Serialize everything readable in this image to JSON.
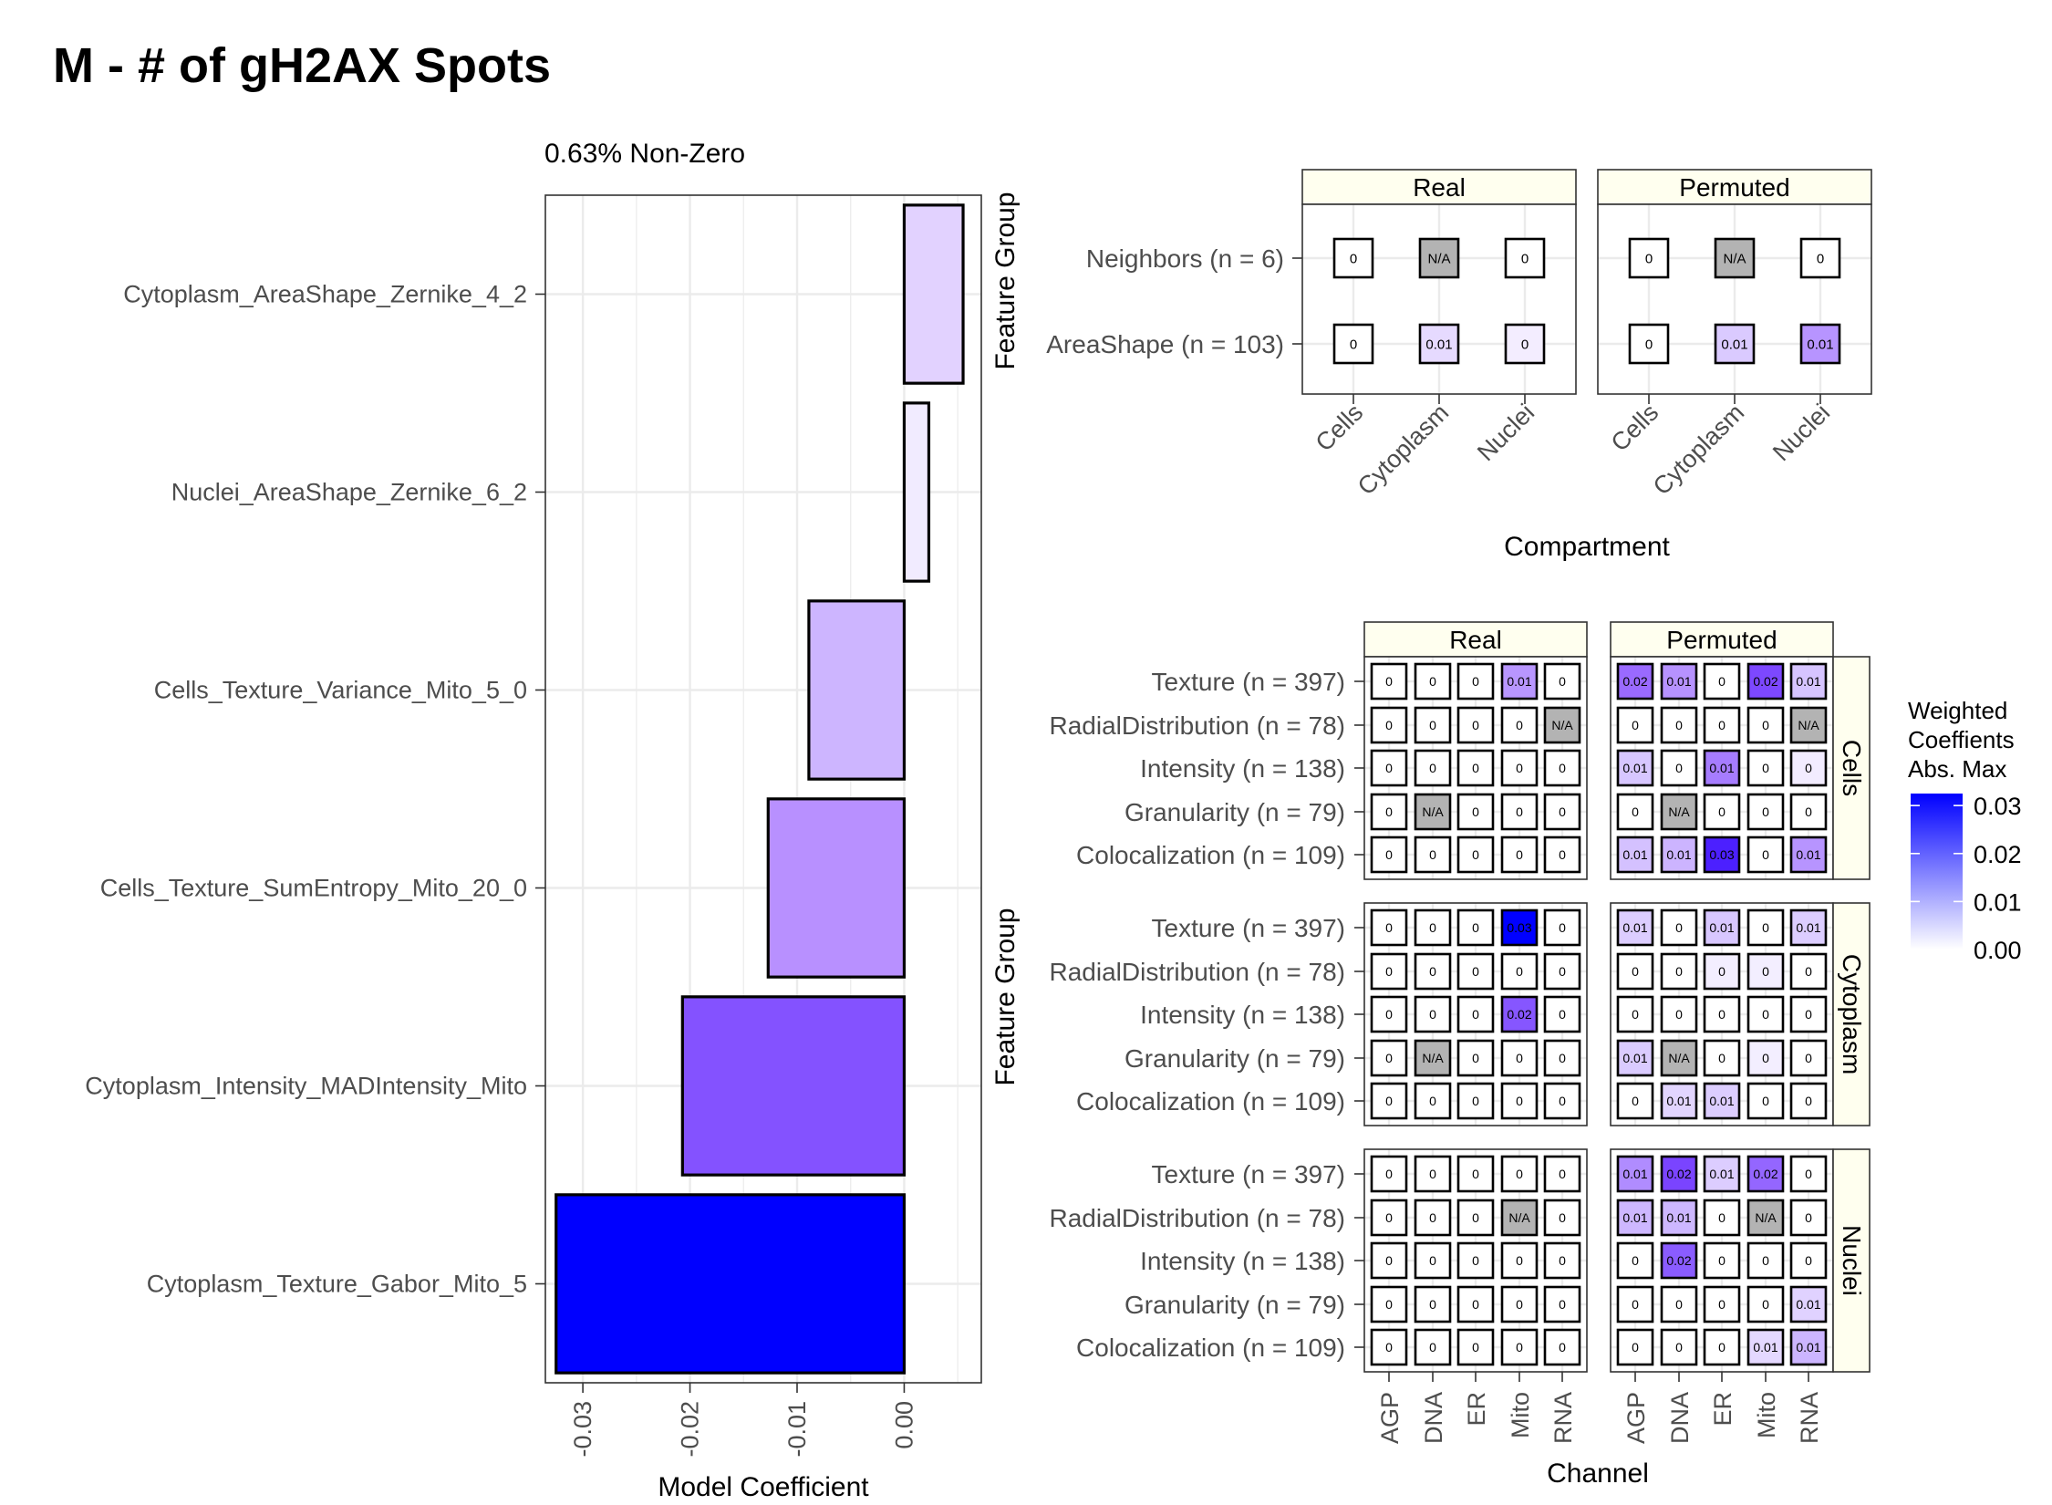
{
  "title": "M - # of gH2AX Spots",
  "chart_data": [
    {
      "type": "bar",
      "orientation": "horizontal",
      "subtitle": "0.63% Non-Zero",
      "xlabel": "Model Coefficient",
      "xlim": [
        -0.0335,
        0.0072
      ],
      "x_ticks": [
        "-0.03",
        "-0.02",
        "-0.01",
        "0.00"
      ],
      "x_tick_values": [
        -0.03,
        -0.02,
        -0.01,
        0.0
      ],
      "categories": [
        "Cytoplasm_AreaShape_Zernike_4_2",
        "Nuclei_AreaShape_Zernike_6_2",
        "Cells_Texture_Variance_Mito_5_0",
        "Cells_Texture_SumEntropy_Mito_20_0",
        "Cytoplasm_Intensity_MADIntensity_Mito",
        "Cytoplasm_Texture_Gabor_Mito_5"
      ],
      "values": [
        0.0055,
        0.0023,
        -0.0089,
        -0.0127,
        -0.0207,
        -0.0325
      ],
      "fill_colors": [
        "#e2d2ff",
        "#f1ebff",
        "#cdb5ff",
        "#b890ff",
        "#8452ff",
        "#0000ff"
      ],
      "grid": true
    },
    {
      "type": "heatmap",
      "ylabel": "Feature Group",
      "xlabel": "Compartment",
      "facets": [
        "Real",
        "Permuted"
      ],
      "x_categories": [
        "Cells",
        "Cytoplasm",
        "Nuclei"
      ],
      "y_categories": [
        "Neighbors (n = 6)",
        "AreaShape (n = 103)"
      ],
      "cells": {
        "Real": [
          [
            "0",
            "N/A",
            "0"
          ],
          [
            "0",
            "0.01",
            "0"
          ]
        ],
        "Permuted": [
          [
            "0",
            "N/A",
            "0"
          ],
          [
            "0",
            "0.01",
            "0.01"
          ]
        ]
      },
      "fills": {
        "Real": [
          [
            "#ffffff",
            "#b3b3b3",
            "#ffffff"
          ],
          [
            "#ffffff",
            "#e6daff",
            "#f3edff"
          ]
        ],
        "Permuted": [
          [
            "#ffffff",
            "#b3b3b3",
            "#ffffff"
          ],
          [
            "#ffffff",
            "#dacaff",
            "#b794ff"
          ]
        ]
      }
    },
    {
      "type": "heatmap",
      "ylabel": "Feature Group",
      "xlabel": "Channel",
      "facets": [
        "Real",
        "Permuted"
      ],
      "row_facets": [
        "Cells",
        "Cytoplasm",
        "Nuclei"
      ],
      "x_categories": [
        "AGP",
        "DNA",
        "ER",
        "Mito",
        "RNA"
      ],
      "y_categories": [
        "Texture (n = 397)",
        "RadialDistribution (n = 78)",
        "Intensity (n = 138)",
        "Granularity (n = 79)",
        "Colocalization (n = 109)"
      ],
      "cells": {
        "Cells": {
          "Real": [
            [
              "0",
              "0",
              "0",
              "0.01",
              "0"
            ],
            [
              "0",
              "0",
              "0",
              "0",
              "N/A"
            ],
            [
              "0",
              "0",
              "0",
              "0",
              "0"
            ],
            [
              "0",
              "N/A",
              "0",
              "0",
              "0"
            ],
            [
              "0",
              "0",
              "0",
              "0",
              "0"
            ]
          ],
          "Permuted": [
            [
              "0.02",
              "0.01",
              "0",
              "0.02",
              "0.01"
            ],
            [
              "0",
              "0",
              "0",
              "0",
              "N/A"
            ],
            [
              "0.01",
              "0",
              "0.01",
              "0",
              "0"
            ],
            [
              "0",
              "N/A",
              "0",
              "0",
              "0"
            ],
            [
              "0.01",
              "0.01",
              "0.03",
              "0",
              "0.01"
            ]
          ]
        },
        "Cytoplasm": {
          "Real": [
            [
              "0",
              "0",
              "0",
              "0.03",
              "0"
            ],
            [
              "0",
              "0",
              "0",
              "0",
              "0"
            ],
            [
              "0",
              "0",
              "0",
              "0.02",
              "0"
            ],
            [
              "0",
              "N/A",
              "0",
              "0",
              "0"
            ],
            [
              "0",
              "0",
              "0",
              "0",
              "0"
            ]
          ],
          "Permuted": [
            [
              "0.01",
              "0",
              "0.01",
              "0",
              "0.01"
            ],
            [
              "0",
              "0",
              "0",
              "0",
              "0"
            ],
            [
              "0",
              "0",
              "0",
              "0",
              "0"
            ],
            [
              "0.01",
              "N/A",
              "0",
              "0",
              "0"
            ],
            [
              "0",
              "0.01",
              "0.01",
              "0",
              "0"
            ]
          ]
        },
        "Nuclei": {
          "Real": [
            [
              "0",
              "0",
              "0",
              "0",
              "0"
            ],
            [
              "0",
              "0",
              "0",
              "N/A",
              "0"
            ],
            [
              "0",
              "0",
              "0",
              "0",
              "0"
            ],
            [
              "0",
              "0",
              "0",
              "0",
              "0"
            ],
            [
              "0",
              "0",
              "0",
              "0",
              "0"
            ]
          ],
          "Permuted": [
            [
              "0.01",
              "0.02",
              "0.01",
              "0.02",
              "0"
            ],
            [
              "0.01",
              "0.01",
              "0",
              "N/A",
              "0"
            ],
            [
              "0",
              "0.02",
              "0",
              "0",
              "0"
            ],
            [
              "0",
              "0",
              "0",
              "0",
              "0.01"
            ],
            [
              "0",
              "0",
              "0",
              "0.01",
              "0.01"
            ]
          ]
        }
      },
      "fills": {
        "Cells": {
          "Real": [
            [
              "#ffffff",
              "#ffffff",
              "#ffffff",
              "#b896ff",
              "#ffffff"
            ],
            [
              "#ffffff",
              "#ffffff",
              "#ffffff",
              "#ffffff",
              "#b3b3b3"
            ],
            [
              "#ffffff",
              "#ffffff",
              "#ffffff",
              "#ffffff",
              "#ffffff"
            ],
            [
              "#ffffff",
              "#b3b3b3",
              "#ffffff",
              "#ffffff",
              "#ffffff"
            ],
            [
              "#ffffff",
              "#ffffff",
              "#ffffff",
              "#ffffff",
              "#ffffff"
            ]
          ],
          "Permuted": [
            [
              "#9a6aff",
              "#b692ff",
              "#ffffff",
              "#7d48ff",
              "#d6c4ff"
            ],
            [
              "#ffffff",
              "#ffffff",
              "#ffffff",
              "#ffffff",
              "#b3b3b3"
            ],
            [
              "#d7c6ff",
              "#ffffff",
              "#a67cff",
              "#ffffff",
              "#f2ecff"
            ],
            [
              "#ffffff",
              "#b3b3b3",
              "#ffffff",
              "#ffffff",
              "#ffffff"
            ],
            [
              "#d4c1ff",
              "#ccb4ff",
              "#4c20ff",
              "#ffffff",
              "#b794ff"
            ]
          ]
        },
        "Cytoplasm": {
          "Real": [
            [
              "#ffffff",
              "#ffffff",
              "#ffffff",
              "#0000ff",
              "#ffffff"
            ],
            [
              "#ffffff",
              "#ffffff",
              "#ffffff",
              "#ffffff",
              "#ffffff"
            ],
            [
              "#ffffff",
              "#ffffff",
              "#ffffff",
              "#8656ff",
              "#ffffff"
            ],
            [
              "#ffffff",
              "#b3b3b3",
              "#ffffff",
              "#ffffff",
              "#ffffff"
            ],
            [
              "#ffffff",
              "#ffffff",
              "#ffffff",
              "#ffffff",
              "#ffffff"
            ]
          ],
          "Permuted": [
            [
              "#dccdff",
              "#ffffff",
              "#d8c7ff",
              "#ffffff",
              "#dccdff"
            ],
            [
              "#ffffff",
              "#ffffff",
              "#f3eeff",
              "#f3eeff",
              "#ffffff"
            ],
            [
              "#ffffff",
              "#ffffff",
              "#ffffff",
              "#ffffff",
              "#ffffff"
            ],
            [
              "#dacbff",
              "#b3b3b3",
              "#ffffff",
              "#f3eeff",
              "#ffffff"
            ],
            [
              "#ffffff",
              "#e2d5ff",
              "#dccdff",
              "#ffffff",
              "#ffffff"
            ]
          ]
        },
        "Nuclei": {
          "Real": [
            [
              "#ffffff",
              "#ffffff",
              "#ffffff",
              "#ffffff",
              "#ffffff"
            ],
            [
              "#ffffff",
              "#ffffff",
              "#ffffff",
              "#b3b3b3",
              "#ffffff"
            ],
            [
              "#ffffff",
              "#ffffff",
              "#ffffff",
              "#ffffff",
              "#ffffff"
            ],
            [
              "#ffffff",
              "#ffffff",
              "#ffffff",
              "#ffffff",
              "#ffffff"
            ],
            [
              "#ffffff",
              "#ffffff",
              "#ffffff",
              "#ffffff",
              "#ffffff"
            ]
          ],
          "Permuted": [
            [
              "#b08cff",
              "#7a44ff",
              "#dccdff",
              "#9466ff",
              "#ffffff"
            ],
            [
              "#cdb7ff",
              "#cdb7ff",
              "#ffffff",
              "#b3b3b3",
              "#ffffff"
            ],
            [
              "#ffffff",
              "#8a5cff",
              "#ffffff",
              "#ffffff",
              "#ffffff"
            ],
            [
              "#ffffff",
              "#ffffff",
              "#ffffff",
              "#ffffff",
              "#e0d2ff"
            ],
            [
              "#ffffff",
              "#ffffff",
              "#ffffff",
              "#e4d8ff",
              "#ccb5ff"
            ]
          ]
        }
      }
    }
  ],
  "legend": {
    "title_lines": [
      "Weighted",
      "Coeffients",
      "Abs. Max"
    ],
    "ticks": [
      "0.03",
      "0.02",
      "0.01",
      "0.00"
    ],
    "tick_values": [
      0.03,
      0.02,
      0.01,
      0.0
    ],
    "range": [
      0,
      0.0325
    ],
    "color_low": "#ffffff",
    "color_high": "#0000ff"
  },
  "colors": {
    "strip_fill": "#ffffef",
    "na_fill": "#b3b3b3",
    "grid": "#ebebeb",
    "tick_label": "#4d4d4d"
  }
}
